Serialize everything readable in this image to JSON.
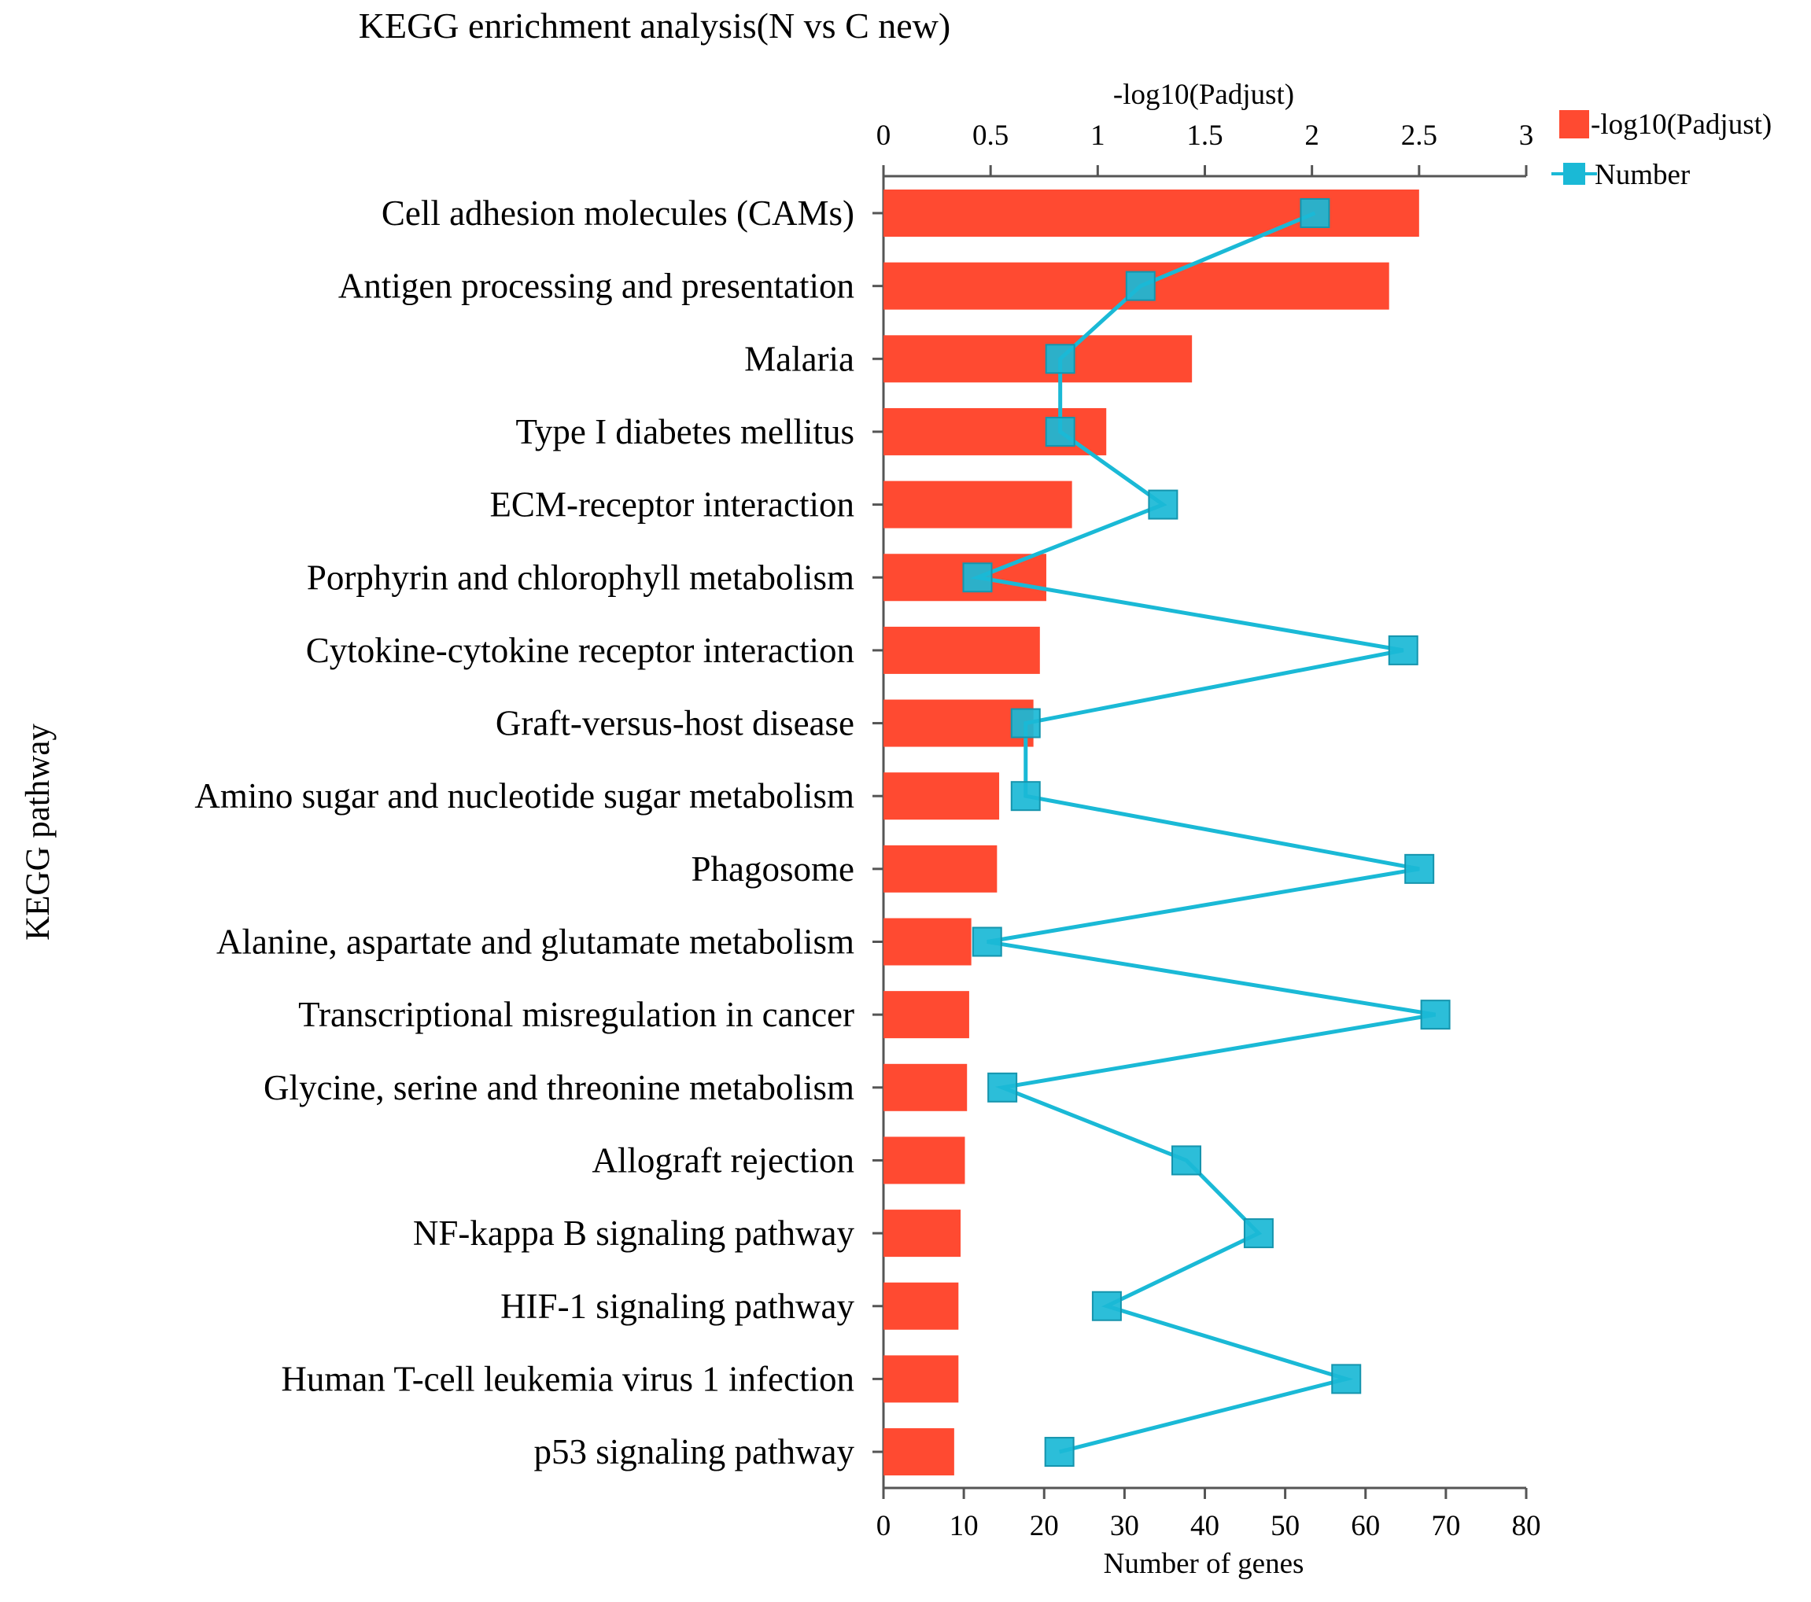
{
  "chart_data": {
    "type": "bar",
    "title": "KEGG enrichment analysis(N  vs  C  new)",
    "ylabel": "KEGG pathway",
    "top_axis_label": "-log10(Padjust)",
    "bottom_axis_label": "Number of genes",
    "top_axis_range": [
      0,
      3
    ],
    "top_ticks": [
      "0",
      "0.5",
      "1",
      "1.5",
      "2",
      "2.5",
      "3"
    ],
    "bottom_axis_range": [
      0,
      80
    ],
    "bottom_ticks": [
      "0",
      "10",
      "20",
      "30",
      "40",
      "50",
      "60",
      "70",
      "80"
    ],
    "grid": false,
    "legend_position": "top-right",
    "colors": {
      "bar": "#ff4a31",
      "line": "#1ab9d6",
      "marker_fill": "#1ab9d6",
      "axis": "#555555"
    },
    "categories": [
      "Cell adhesion molecules (CAMs)",
      "Antigen processing and presentation",
      "Malaria",
      "Type I diabetes mellitus",
      "ECM-receptor interaction",
      "Porphyrin and chlorophyll metabolism",
      "Cytokine-cytokine receptor interaction",
      "Graft-versus-host disease",
      "Amino sugar and nucleotide sugar metabolism",
      "Phagosome",
      "Alanine, aspartate and glutamate metabolism",
      "Transcriptional misregulation in cancer",
      "Glycine, serine and threonine metabolism",
      "Allograft rejection",
      "NF-kappa B signaling pathway",
      "HIF-1 signaling pathway",
      "Human T-cell leukemia virus 1 infection",
      "p53 signaling pathway"
    ],
    "series": [
      {
        "name": "-log10(Padjust)",
        "type": "bar",
        "axis": "top",
        "values": [
          2.5,
          2.36,
          1.44,
          1.04,
          0.88,
          0.76,
          0.73,
          0.7,
          0.54,
          0.53,
          0.41,
          0.4,
          0.39,
          0.38,
          0.36,
          0.35,
          0.35,
          0.33
        ]
      },
      {
        "name": "Number",
        "type": "line",
        "axis": "bottom",
        "values": [
          53.7,
          32,
          22,
          22,
          34.8,
          11.7,
          64.7,
          17.7,
          17.7,
          66.7,
          12.9,
          68.7,
          14.8,
          37.7,
          46.7,
          27.8,
          57.6,
          21.9
        ]
      }
    ]
  }
}
